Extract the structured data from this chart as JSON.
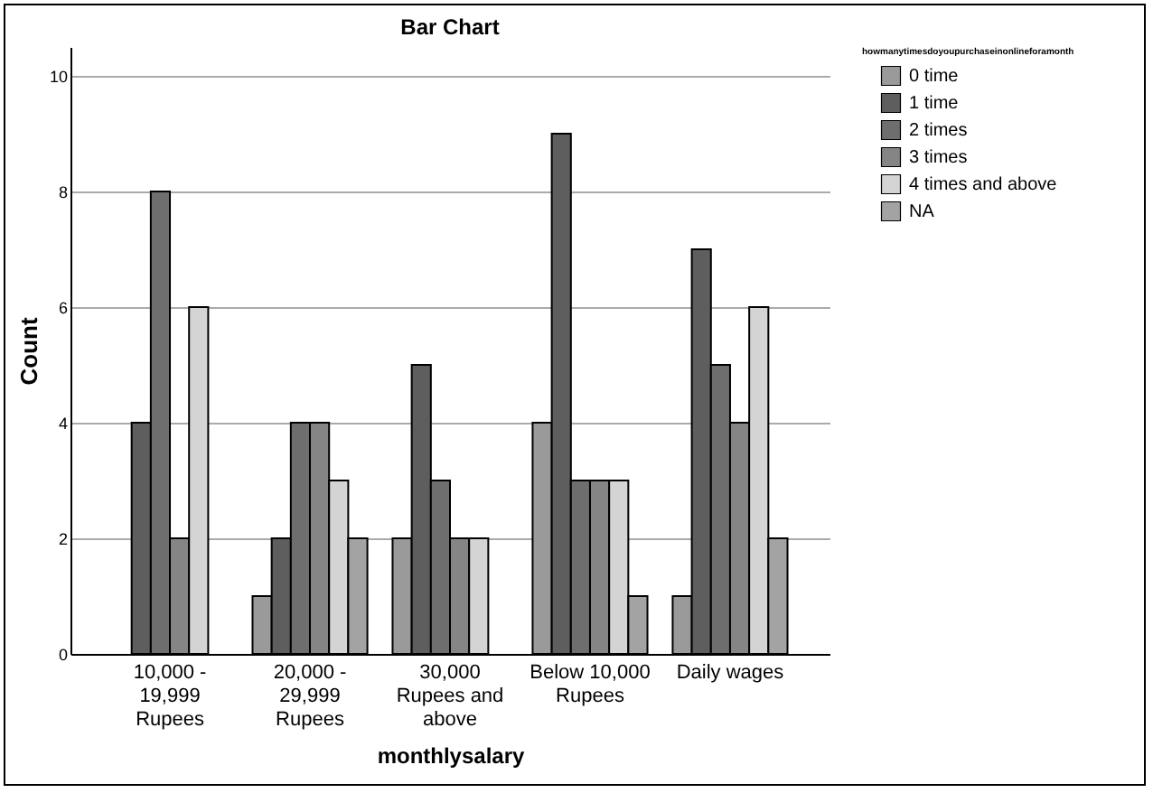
{
  "chart_data": {
    "type": "bar",
    "title": "Bar Chart",
    "xlabel": "monthlysalary",
    "ylabel": "Count",
    "legend_title": "howmanytimesdoyoupurchaseinonlineforamonth",
    "categories": [
      "10,000 - 19,999 Rupees",
      "20,000 - 29,999 Rupees",
      "30,000 Rupees and above",
      "Below 10,000 Rupees",
      "Daily wages"
    ],
    "series": [
      {
        "name": "0 time",
        "color": "#9a9a9a",
        "values": [
          null,
          1,
          2,
          4,
          1
        ]
      },
      {
        "name": "1 time",
        "color": "#5e5e5e",
        "values": [
          4,
          2,
          5,
          9,
          7
        ]
      },
      {
        "name": "2 times",
        "color": "#6e6e6e",
        "values": [
          8,
          4,
          3,
          3,
          5
        ]
      },
      {
        "name": "3 times",
        "color": "#858585",
        "values": [
          2,
          4,
          2,
          3,
          4
        ]
      },
      {
        "name": "4 times and above",
        "color": "#d4d4d4",
        "values": [
          6,
          3,
          2,
          3,
          6
        ]
      },
      {
        "name": "NA",
        "color": "#a3a3a3",
        "values": [
          null,
          2,
          null,
          1,
          2
        ]
      }
    ],
    "ylim": [
      0,
      10.5
    ],
    "yticks": [
      0,
      2,
      4,
      6,
      8,
      10
    ],
    "grid": "y",
    "legend": "top right"
  }
}
